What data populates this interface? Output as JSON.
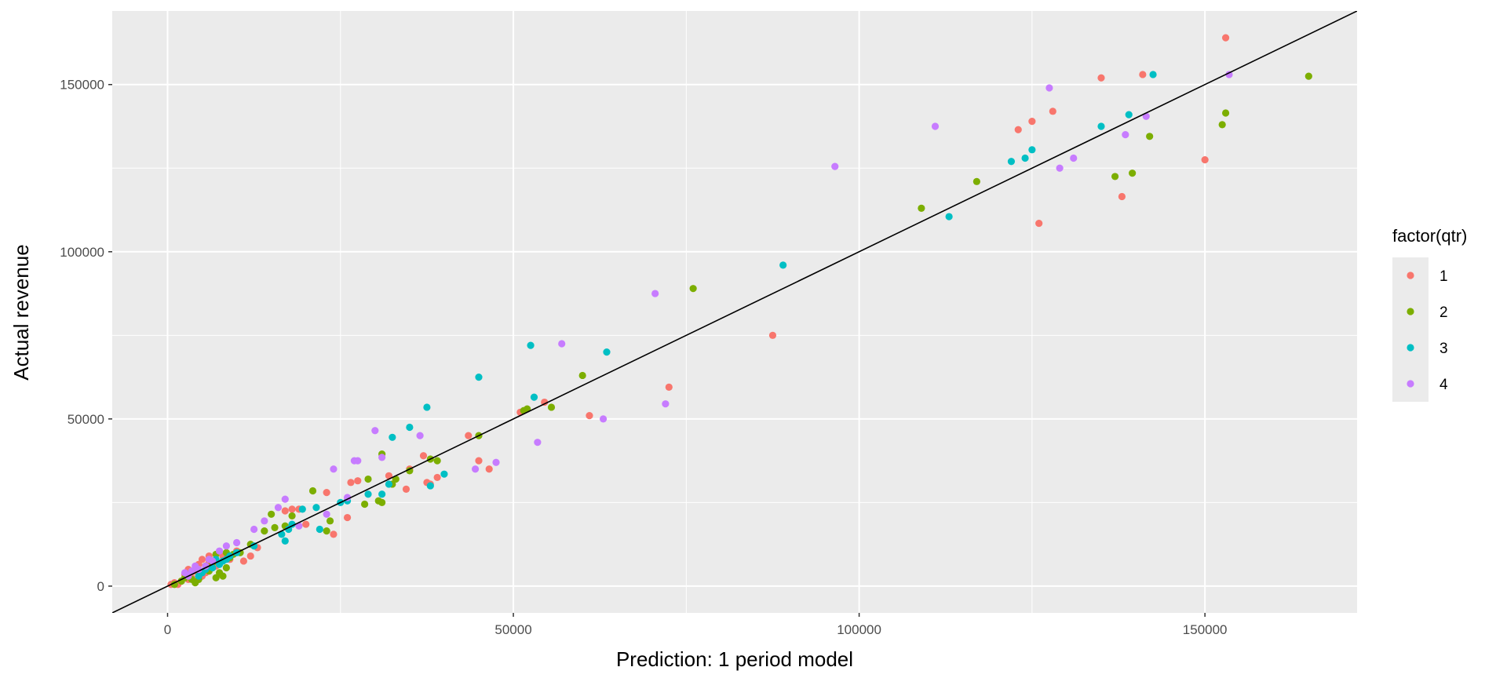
{
  "chart_data": {
    "type": "scatter",
    "xlabel": "Prediction: 1 period model",
    "ylabel": "Actual revenue",
    "xlim": [
      -8000,
      172000
    ],
    "ylim": [
      -8000,
      172000
    ],
    "xticks": [
      0,
      50000,
      100000,
      150000
    ],
    "yticks": [
      0,
      50000,
      100000,
      150000
    ],
    "xtick_labels": [
      "0",
      "50000",
      "100000",
      "150000"
    ],
    "ytick_labels": [
      "0",
      "50000",
      "100000",
      "150000"
    ],
    "grid": true,
    "reference_line": {
      "slope": 1,
      "intercept": 0,
      "color": "#000000"
    },
    "legend": {
      "title": "factor(qtr)",
      "placement": "right"
    },
    "series": [
      {
        "name": "1",
        "color": "#F8766D",
        "points": [
          [
            153000,
            164000
          ],
          [
            141000,
            153000
          ],
          [
            135000,
            152000
          ],
          [
            128000,
            142000
          ],
          [
            125000,
            139000
          ],
          [
            123000,
            136500
          ],
          [
            150000,
            127500
          ],
          [
            138000,
            116500
          ],
          [
            126000,
            108500
          ],
          [
            87500,
            75000
          ],
          [
            72500,
            59500
          ],
          [
            61000,
            51000
          ],
          [
            54500,
            55000
          ],
          [
            51000,
            52000
          ],
          [
            43500,
            45000
          ],
          [
            45000,
            37500
          ],
          [
            46500,
            35000
          ],
          [
            39000,
            32500
          ],
          [
            37500,
            31000
          ],
          [
            38000,
            30500
          ],
          [
            37000,
            39000
          ],
          [
            35000,
            35000
          ],
          [
            34500,
            29000
          ],
          [
            32000,
            33000
          ],
          [
            27500,
            31500
          ],
          [
            26500,
            31000
          ],
          [
            26000,
            20500
          ],
          [
            24000,
            15500
          ],
          [
            23000,
            28000
          ],
          [
            20000,
            18500
          ],
          [
            19000,
            23000
          ],
          [
            18000,
            23000
          ],
          [
            17000,
            22500
          ],
          [
            13000,
            11500
          ],
          [
            12000,
            9000
          ],
          [
            11000,
            7500
          ],
          [
            10000,
            10500
          ],
          [
            9000,
            8000
          ],
          [
            6000,
            9000
          ],
          [
            6000,
            7000
          ],
          [
            6500,
            5500
          ],
          [
            5500,
            4000
          ],
          [
            5000,
            3000
          ],
          [
            4500,
            6500
          ],
          [
            4000,
            4500
          ],
          [
            3500,
            2500
          ],
          [
            3000,
            2000
          ],
          [
            2500,
            3500
          ],
          [
            2000,
            1500
          ],
          [
            1500,
            500
          ],
          [
            1000,
            1000
          ],
          [
            500,
            500
          ],
          [
            7000,
            6000
          ],
          [
            8000,
            9000
          ],
          [
            5000,
            8000
          ],
          [
            3000,
            5000
          ]
        ]
      },
      {
        "name": "2",
        "color": "#7CAE00",
        "points": [
          [
            165000,
            152500
          ],
          [
            153000,
            141500
          ],
          [
            152500,
            138000
          ],
          [
            142000,
            134500
          ],
          [
            139500,
            123500
          ],
          [
            137000,
            122500
          ],
          [
            117000,
            121000
          ],
          [
            109000,
            113000
          ],
          [
            76000,
            89000
          ],
          [
            60000,
            63000
          ],
          [
            55500,
            53500
          ],
          [
            52000,
            53000
          ],
          [
            51500,
            52500
          ],
          [
            45000,
            45000
          ],
          [
            39000,
            37500
          ],
          [
            38000,
            38000
          ],
          [
            35000,
            34500
          ],
          [
            33000,
            32000
          ],
          [
            32500,
            30500
          ],
          [
            31000,
            25000
          ],
          [
            30500,
            25500
          ],
          [
            31000,
            39500
          ],
          [
            29000,
            32000
          ],
          [
            28500,
            24500
          ],
          [
            23500,
            19500
          ],
          [
            23000,
            16500
          ],
          [
            21000,
            28500
          ],
          [
            18000,
            21000
          ],
          [
            17000,
            18000
          ],
          [
            15500,
            17500
          ],
          [
            15000,
            21500
          ],
          [
            14000,
            16500
          ],
          [
            12000,
            12500
          ],
          [
            10500,
            10000
          ],
          [
            9500,
            9500
          ],
          [
            9000,
            8500
          ],
          [
            8500,
            5500
          ],
          [
            8000,
            3000
          ],
          [
            7500,
            4000
          ],
          [
            7000,
            2500
          ],
          [
            6500,
            7000
          ],
          [
            6000,
            4500
          ],
          [
            5500,
            6000
          ],
          [
            4500,
            2000
          ],
          [
            4000,
            1000
          ],
          [
            3500,
            2000
          ],
          [
            3000,
            3500
          ],
          [
            2500,
            2500
          ],
          [
            2000,
            1500
          ],
          [
            1000,
            500
          ],
          [
            8500,
            10000
          ],
          [
            7000,
            9500
          ]
        ]
      },
      {
        "name": "3",
        "color": "#00BFC4",
        "points": [
          [
            142500,
            153000
          ],
          [
            139000,
            141000
          ],
          [
            135000,
            137500
          ],
          [
            125000,
            130500
          ],
          [
            124000,
            128000
          ],
          [
            122000,
            127000
          ],
          [
            113000,
            110500
          ],
          [
            89000,
            96000
          ],
          [
            63500,
            70000
          ],
          [
            53000,
            56500
          ],
          [
            52500,
            72000
          ],
          [
            45000,
            62500
          ],
          [
            40000,
            33500
          ],
          [
            38000,
            30000
          ],
          [
            37500,
            53500
          ],
          [
            35000,
            47500
          ],
          [
            32500,
            44500
          ],
          [
            32000,
            30500
          ],
          [
            31000,
            27500
          ],
          [
            29000,
            27500
          ],
          [
            26000,
            25500
          ],
          [
            25000,
            25000
          ],
          [
            22000,
            17000
          ],
          [
            21500,
            23500
          ],
          [
            19500,
            23000
          ],
          [
            18000,
            18500
          ],
          [
            17500,
            17000
          ],
          [
            17000,
            13500
          ],
          [
            16500,
            15500
          ],
          [
            12500,
            12000
          ],
          [
            10000,
            10000
          ],
          [
            9000,
            9000
          ],
          [
            8500,
            8000
          ],
          [
            8000,
            7500
          ],
          [
            7500,
            6500
          ],
          [
            7000,
            8000
          ],
          [
            6500,
            5500
          ],
          [
            5500,
            5000
          ],
          [
            5000,
            4000
          ],
          [
            4500,
            3000
          ]
        ]
      },
      {
        "name": "4",
        "color": "#C77CFF",
        "points": [
          [
            153500,
            153000
          ],
          [
            141500,
            140500
          ],
          [
            138500,
            135000
          ],
          [
            131000,
            128000
          ],
          [
            129000,
            125000
          ],
          [
            127500,
            149000
          ],
          [
            111000,
            137500
          ],
          [
            96500,
            125500
          ],
          [
            70500,
            87500
          ],
          [
            72000,
            54500
          ],
          [
            63000,
            50000
          ],
          [
            57000,
            72500
          ],
          [
            53500,
            43000
          ],
          [
            47500,
            37000
          ],
          [
            44500,
            35000
          ],
          [
            36500,
            45000
          ],
          [
            31000,
            38500
          ],
          [
            30000,
            46500
          ],
          [
            27500,
            37500
          ],
          [
            27000,
            37500
          ],
          [
            26000,
            26500
          ],
          [
            24000,
            35000
          ],
          [
            23000,
            21500
          ],
          [
            19000,
            18000
          ],
          [
            17000,
            26000
          ],
          [
            16000,
            23500
          ],
          [
            14000,
            19500
          ],
          [
            12500,
            17000
          ],
          [
            10000,
            13000
          ],
          [
            8500,
            12000
          ],
          [
            7500,
            10500
          ],
          [
            6500,
            7500
          ],
          [
            6000,
            8000
          ],
          [
            5500,
            6000
          ],
          [
            4500,
            5000
          ],
          [
            4000,
            6000
          ],
          [
            3500,
            4500
          ],
          [
            3000,
            3000
          ],
          [
            2500,
            4000
          ]
        ]
      }
    ]
  }
}
